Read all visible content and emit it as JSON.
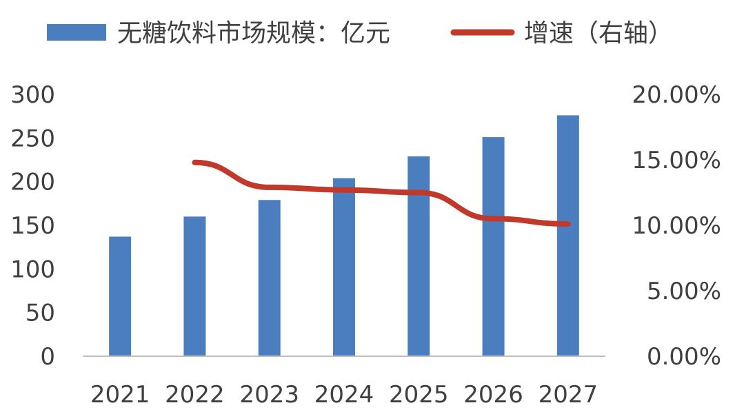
{
  "chart_data": {
    "type": "bar",
    "categories": [
      "2021",
      "2022",
      "2023",
      "2024",
      "2025",
      "2026",
      "2027"
    ],
    "series": [
      {
        "name": "无糖饮料市场规模：亿元",
        "type": "bar",
        "axis": "left",
        "color": "#4a7ebe",
        "values": [
          137,
          160,
          179,
          204,
          229,
          251,
          276
        ]
      },
      {
        "name": "增速（右轴）",
        "type": "line",
        "axis": "right",
        "color": "#c0392b",
        "values": [
          null,
          14.8,
          12.9,
          12.7,
          12.5,
          10.5,
          10.1
        ]
      }
    ],
    "y_left": {
      "ylim": [
        0,
        300
      ],
      "ticks": [
        "0",
        "50",
        "100",
        "150",
        "200",
        "250",
        "300"
      ]
    },
    "y_right": {
      "ylim": [
        0,
        20
      ],
      "ticks": [
        "0.00%",
        "5.00%",
        "10.00%",
        "15.00%",
        "20.00%"
      ]
    },
    "legend": "top",
    "grid": false
  }
}
